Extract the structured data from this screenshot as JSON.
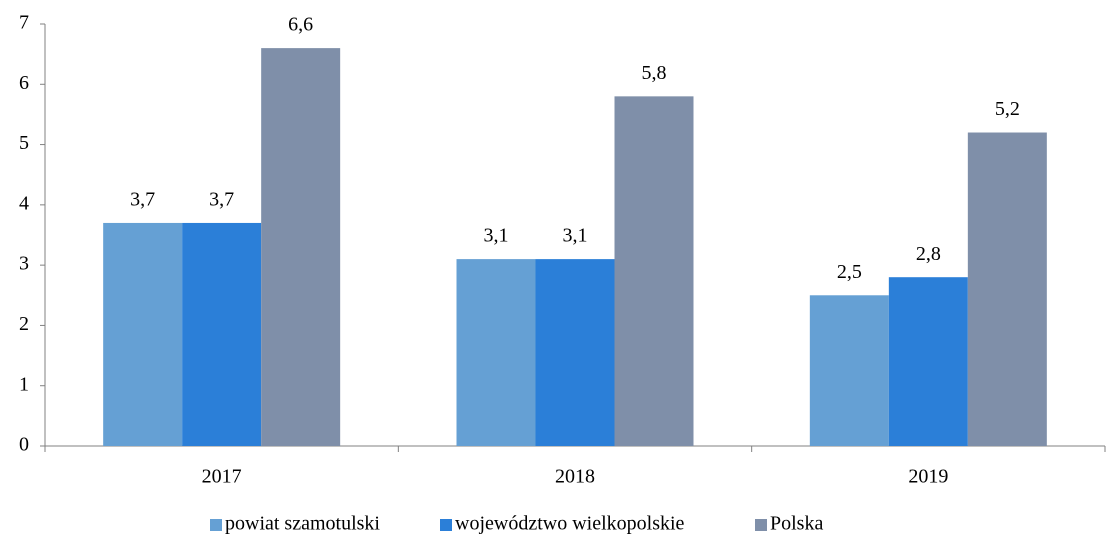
{
  "chart_data": {
    "type": "bar",
    "categories": [
      "2017",
      "2018",
      "2019"
    ],
    "series": [
      {
        "name": "powiat szamotulski",
        "color": "#65a0d4",
        "values": [
          3.7,
          3.1,
          2.5
        ],
        "value_labels": [
          "3,7",
          "3,1",
          "2,5"
        ]
      },
      {
        "name": "województwo wielkopolskie",
        "color": "#2b7fd8",
        "values": [
          3.7,
          3.1,
          2.8
        ],
        "value_labels": [
          "3,7",
          "3,1",
          "2,8"
        ]
      },
      {
        "name": "Polska",
        "color": "#7f8fa9",
        "values": [
          6.6,
          5.8,
          5.2
        ],
        "value_labels": [
          "6,6",
          "5,8",
          "5,2"
        ]
      }
    ],
    "ylim": [
      0,
      7
    ],
    "yticks": [
      0,
      1,
      2,
      3,
      4,
      5,
      6,
      7
    ],
    "grid": false,
    "legend": "bottom"
  }
}
